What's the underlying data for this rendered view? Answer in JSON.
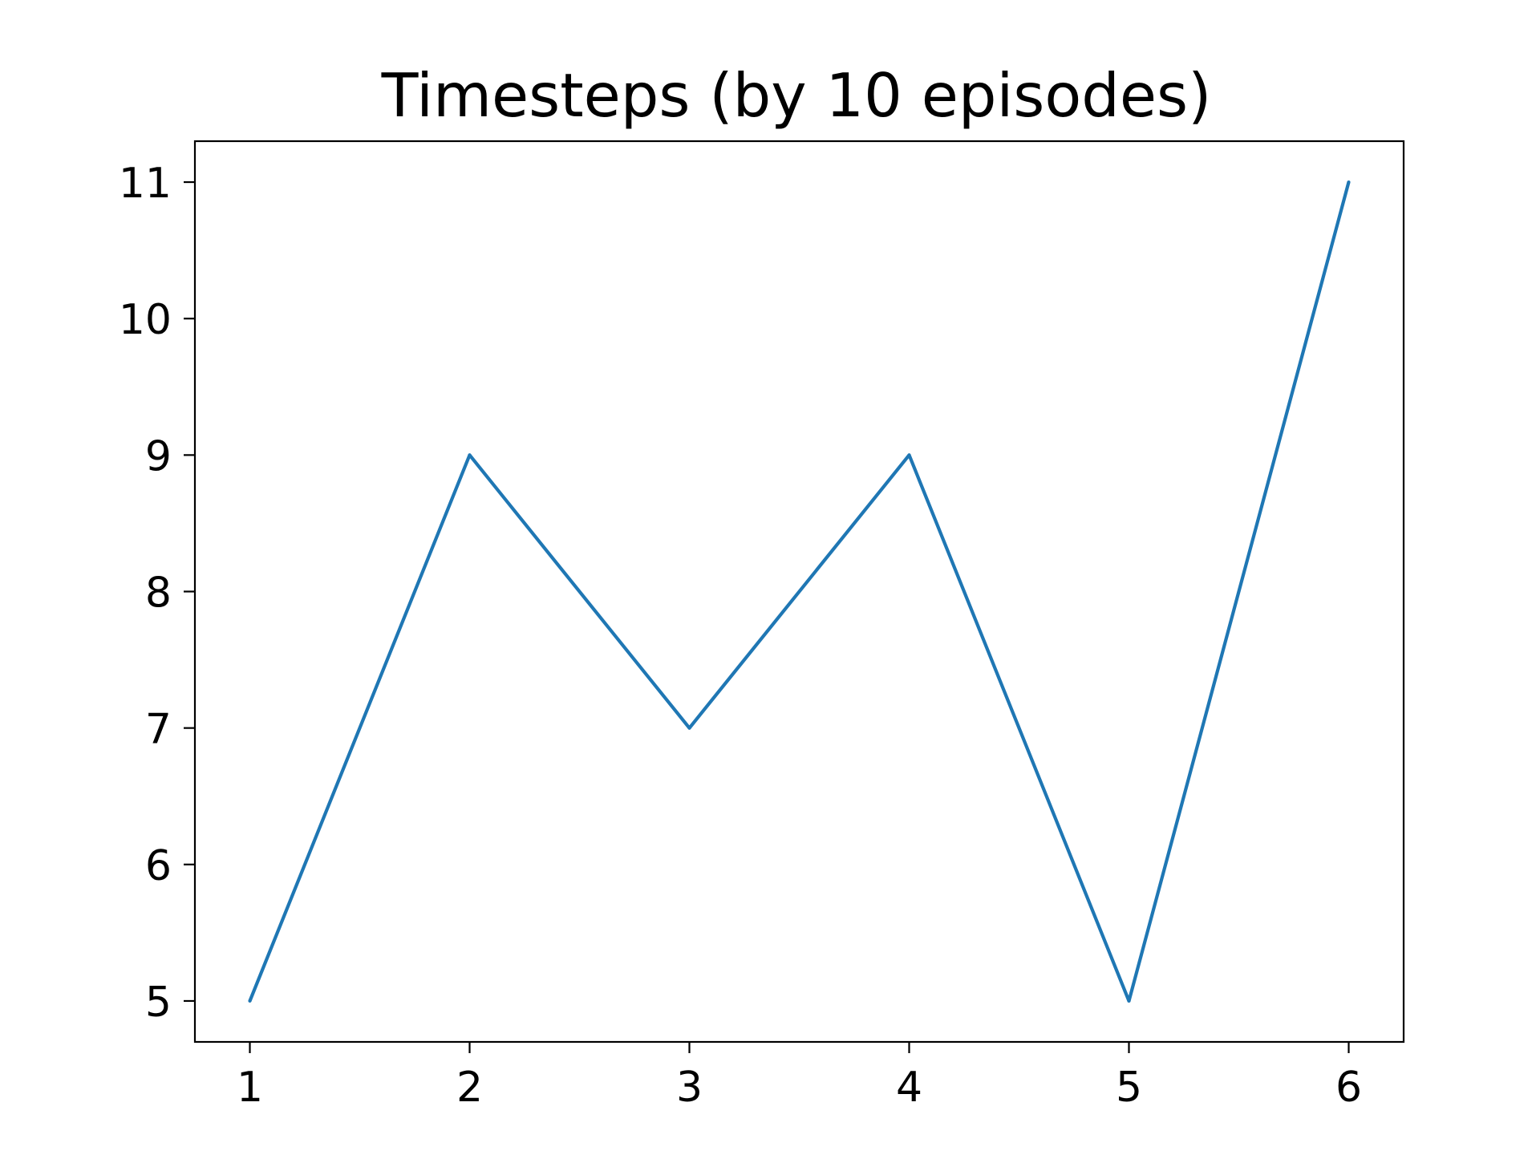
{
  "chart_data": {
    "type": "line",
    "title": "Timesteps (by 10 episodes)",
    "xlabel": "",
    "ylabel": "",
    "x": [
      1,
      2,
      3,
      4,
      5,
      6
    ],
    "series": [
      {
        "values": [
          5,
          9,
          7,
          9,
          5,
          11
        ],
        "color": "#1f77b4"
      }
    ],
    "xticks": [
      1,
      2,
      3,
      4,
      5,
      6
    ],
    "yticks": [
      5,
      6,
      7,
      8,
      9,
      10,
      11
    ],
    "xlim": [
      0.75,
      6.25
    ],
    "ylim": [
      4.7,
      11.3
    ],
    "grid": false,
    "legend": "none"
  }
}
